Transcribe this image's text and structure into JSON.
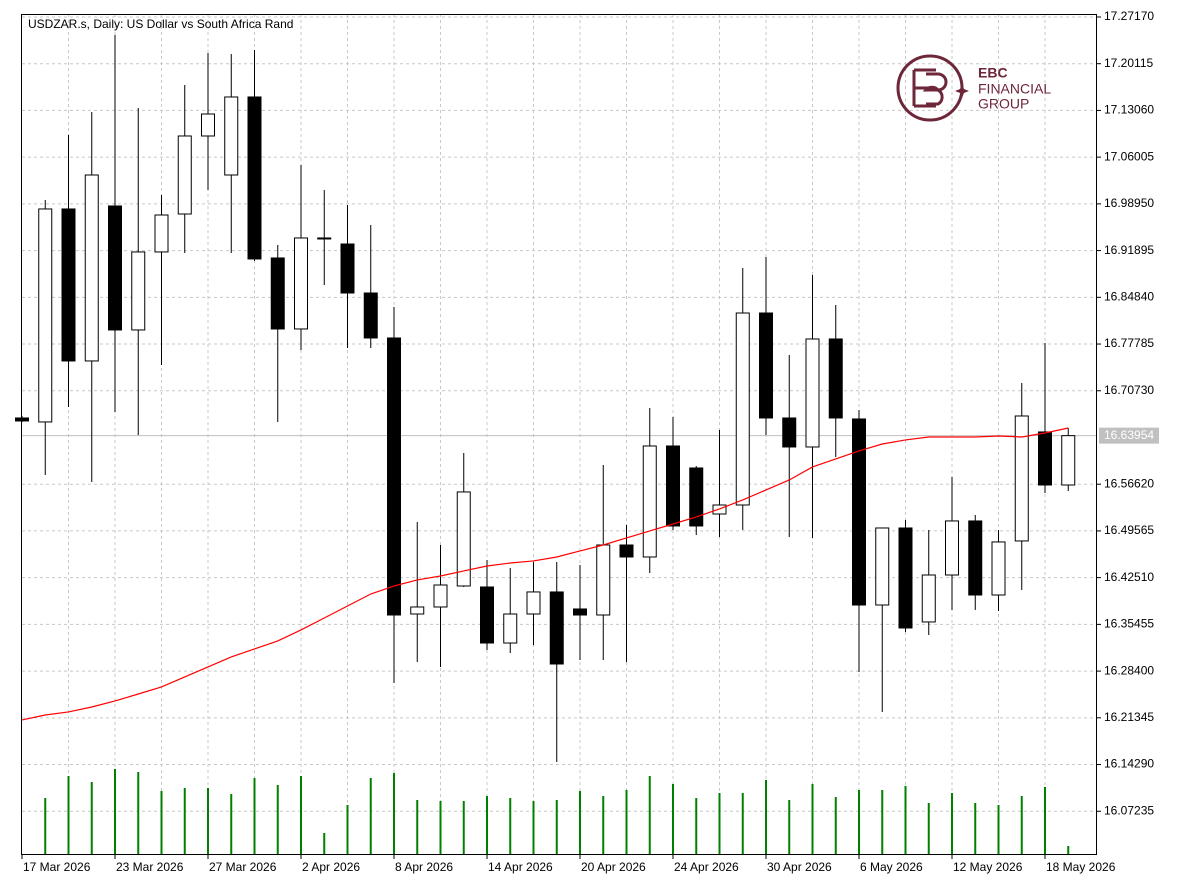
{
  "chart_data": {
    "type": "candlestick",
    "title": "USDZAR.s, Daily:  US Dollar vs South Africa Rand",
    "watermark": {
      "line1": "EBC",
      "line2": "FINANCIAL",
      "line3": "GROUP"
    },
    "categories": [
      "17 Mar 2026",
      null,
      null,
      null,
      "23 Mar 2026",
      null,
      null,
      null,
      "27 Mar 2026",
      null,
      null,
      null,
      "2 Apr 2026",
      null,
      null,
      null,
      "8 Apr 2026",
      null,
      null,
      null,
      "14 Apr 2026",
      null,
      null,
      null,
      "20 Apr 2026",
      null,
      null,
      null,
      "24 Apr 2026",
      null,
      null,
      null,
      "30 Apr 2026",
      null,
      null,
      null,
      "6 May 2026",
      null,
      null,
      null,
      "12 May 2026",
      null,
      null,
      null,
      "18 May 2026",
      null
    ],
    "open": [
      16.6662,
      16.6602,
      16.9818,
      16.7523,
      16.9863,
      16.7991,
      16.9169,
      16.9742,
      17.092,
      17.0331,
      17.1509,
      16.9078,
      16.8006,
      16.938,
      16.9289,
      16.8549,
      16.787,
      16.3702,
      16.3808,
      16.4125,
      16.411,
      16.3264,
      16.3702,
      16.4035,
      16.3778,
      16.3687,
      16.4744,
      16.4563,
      16.6239,
      16.5907,
      16.5212,
      16.5348,
      16.8247,
      16.6662,
      16.6224,
      16.7855,
      16.6647,
      16.3838,
      16.5001,
      16.3582,
      16.4291,
      16.5107,
      16.3989,
      16.4805,
      16.6451,
      16.565
    ],
    "high": [
      16.6692,
      16.9954,
      17.0935,
      17.1283,
      17.2445,
      17.1343,
      17.0029,
      17.169,
      17.2173,
      17.2158,
      17.2219,
      16.9274,
      17.0482,
      17.0105,
      16.9878,
      16.9576,
      16.8338,
      16.5092,
      16.4744,
      16.6133,
      16.4518,
      16.4397,
      16.4488,
      16.4488,
      16.4442,
      16.5952,
      16.5046,
      16.6813,
      16.6677,
      16.5937,
      16.6481,
      16.8927,
      16.9093,
      16.7613,
      16.8821,
      16.8368,
      16.6783,
      16.5001,
      16.5122,
      16.4971,
      16.5771,
      16.5197,
      16.4971,
      16.719,
      16.7794,
      16.6511
    ],
    "low": [
      16.6602,
      16.5801,
      16.6828,
      16.5696,
      16.6753,
      16.6405,
      16.7462,
      16.9153,
      17.0105,
      16.9153,
      16.9033,
      16.6602,
      16.7689,
      16.867,
      16.7719,
      16.7719,
      16.266,
      16.2978,
      16.2902,
      16.411,
      16.3159,
      16.3113,
      16.3234,
      16.1468,
      16.3008,
      16.3008,
      16.2978,
      16.4321,
      16.4971,
      16.4895,
      16.4865,
      16.4971,
      16.6405,
      16.4865,
      16.485,
      16.6073,
      16.2827,
      16.2223,
      16.3431,
      16.3385,
      16.3763,
      16.3763,
      16.3748,
      16.4065,
      16.5529,
      16.556
    ],
    "close": [
      16.6617,
      16.9818,
      16.7523,
      17.0331,
      16.7991,
      16.9169,
      16.9727,
      17.092,
      17.1252,
      17.1509,
      16.9063,
      16.8006,
      16.938,
      16.9365,
      16.8549,
      16.787,
      16.3687,
      16.3808,
      16.414,
      16.5545,
      16.3264,
      16.3702,
      16.4035,
      16.2947,
      16.3687,
      16.4744,
      16.4563,
      16.6239,
      16.5031,
      16.5031,
      16.5348,
      16.8247,
      16.6662,
      16.6224,
      16.7855,
      16.6662,
      16.3838,
      16.5001,
      16.3491,
      16.4291,
      16.5107,
      16.3989,
      16.479,
      16.6692,
      16.565,
      16.6395
    ],
    "up_color": "#ffffff",
    "down_color": "#000000",
    "outline_color": "#000000",
    "moving_average": {
      "color": "#ff0000",
      "values": [
        16.2102,
        16.2177,
        16.2223,
        16.2298,
        16.2389,
        16.2494,
        16.26,
        16.2751,
        16.2902,
        16.3053,
        16.3174,
        16.3295,
        16.3461,
        16.3642,
        16.3823,
        16.4004,
        16.4125,
        16.4216,
        16.4276,
        16.4352,
        16.4427,
        16.4472,
        16.4503,
        16.4563,
        16.4654,
        16.4744,
        16.485,
        16.4956,
        16.5061,
        16.5167,
        16.5288,
        16.5424,
        16.5575,
        16.5726,
        16.5922,
        16.6043,
        16.6164,
        16.6269,
        16.633,
        16.6375,
        16.6375,
        16.6375,
        16.639,
        16.6375,
        16.6435,
        16.6511
      ]
    },
    "volume": {
      "color": "#008000",
      "values": [
        null,
        57,
        79,
        73,
        86,
        83,
        64,
        67,
        67,
        61,
        77,
        70,
        79,
        22,
        50,
        77,
        82,
        55,
        54,
        54,
        59,
        57,
        54,
        55,
        64,
        59,
        65,
        79,
        71,
        57,
        62,
        62,
        75,
        55,
        71,
        58,
        65,
        65,
        69,
        52,
        62,
        52,
        50,
        59,
        68,
        9
      ]
    },
    "current_price": 16.63954,
    "ylim": [
      16.0063,
      17.2762
    ],
    "yticks": [
      {
        "value": 17.2717,
        "label": "17.27170"
      },
      17.20115,
      {
        "value": 17.1306,
        "label": "17.13060"
      },
      17.06005,
      {
        "value": 16.9895,
        "label": "16.98950"
      },
      16.91895,
      {
        "value": 16.8484,
        "label": "16.84840"
      },
      16.77785,
      {
        "value": 16.7073,
        "label": "16.70730"
      },
      {
        "value": 16.5662,
        "label": "16.56620"
      },
      16.49565,
      {
        "value": 16.4251,
        "label": "16.42510"
      },
      16.35455,
      {
        "value": 16.284,
        "label": "16.28400"
      },
      16.21345,
      {
        "value": 16.1429,
        "label": "16.14290"
      },
      16.07235
    ],
    "grid": true
  }
}
